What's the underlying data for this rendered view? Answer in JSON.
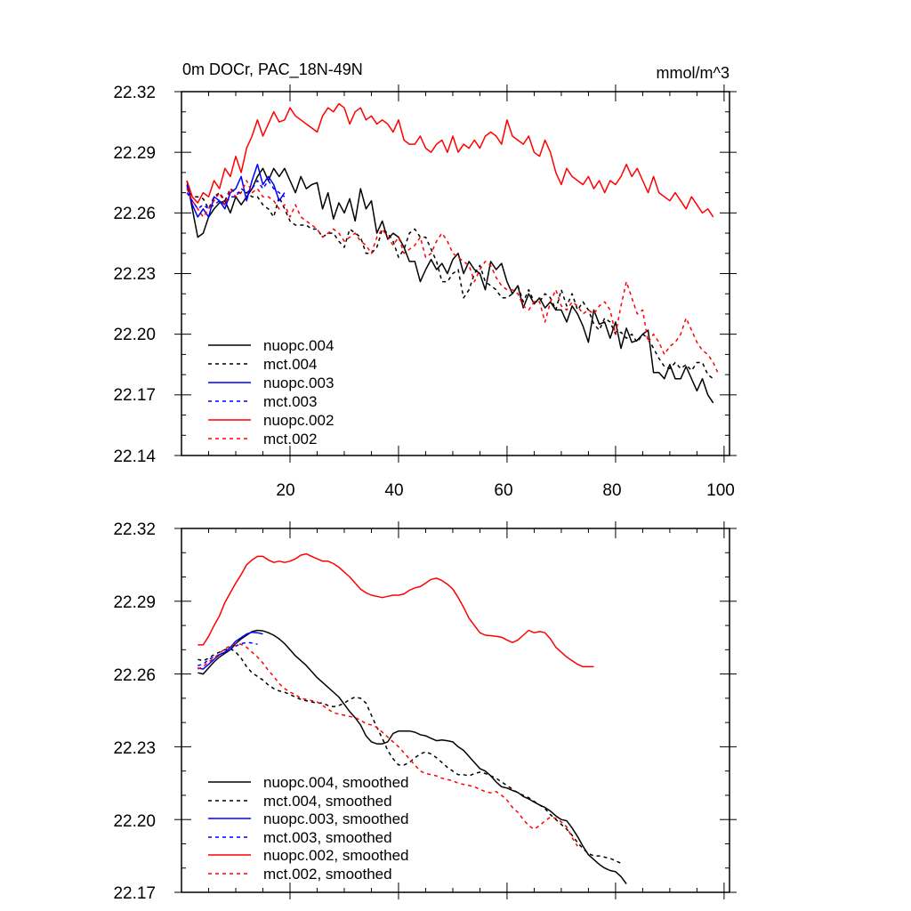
{
  "colors": {
    "black": "#000000",
    "blue": "#0000ff",
    "red": "#ff0000"
  },
  "chart_data": [
    {
      "type": "line",
      "title": "0m DOCr, PAC_18N-49N",
      "units": "mmol/m^3",
      "xlim": [
        0,
        101
      ],
      "ylim": [
        22.14,
        22.32
      ],
      "x_ticks": [
        "20",
        "40",
        "60",
        "80",
        "100"
      ],
      "y_ticks": [
        "22.14",
        "22.17",
        "22.20",
        "22.23",
        "22.26",
        "22.29",
        "22.32"
      ],
      "grid": false,
      "legend_position": "bottom-left",
      "series": [
        {
          "name": "nuopc.004",
          "color": "#000000",
          "dash": "solid",
          "x_start": 1,
          "values": [
            22.276,
            22.262,
            22.248,
            22.25,
            22.258,
            22.262,
            22.265,
            22.266,
            22.26,
            22.268,
            22.264,
            22.268,
            22.272,
            22.278,
            22.282,
            22.276,
            22.282,
            22.278,
            22.282,
            22.276,
            22.27,
            22.278,
            22.272,
            22.274,
            22.275,
            22.262,
            22.27,
            22.257,
            22.265,
            22.26,
            22.267,
            22.256,
            22.272,
            22.262,
            22.266,
            22.25,
            22.256,
            22.247,
            22.25,
            22.248,
            22.243,
            22.236,
            22.236,
            22.226,
            22.232,
            22.237,
            22.232,
            22.235,
            22.23,
            22.237,
            22.24,
            22.23,
            22.236,
            22.232,
            22.23,
            22.222,
            22.236,
            22.232,
            22.235,
            22.226,
            22.22,
            22.224,
            22.213,
            22.22,
            22.215,
            22.218,
            22.213,
            22.216,
            22.212,
            22.212,
            22.206,
            22.214,
            22.21,
            22.204,
            22.196,
            22.212,
            22.205,
            22.206,
            22.198,
            22.206,
            22.193,
            22.203,
            22.196,
            22.197,
            22.2,
            22.202,
            22.181,
            22.181,
            22.178,
            22.185,
            22.178,
            22.178,
            22.184,
            22.178,
            22.172,
            22.178,
            22.17,
            22.166
          ]
        },
        {
          "name": "mct.004",
          "color": "#000000",
          "dash": "dashed",
          "x_start": 1,
          "values": [
            22.273,
            22.268,
            22.268,
            22.267,
            22.262,
            22.268,
            22.27,
            22.266,
            22.272,
            22.27,
            22.27,
            22.27,
            22.268,
            22.268,
            22.264,
            22.262,
            22.258,
            22.268,
            22.262,
            22.256,
            22.254,
            22.254,
            22.254,
            22.252,
            22.252,
            22.248,
            22.25,
            22.25,
            22.246,
            22.243,
            22.252,
            22.25,
            22.248,
            22.24,
            22.24,
            22.243,
            22.252,
            22.25,
            22.246,
            22.238,
            22.242,
            22.25,
            22.252,
            22.248,
            22.248,
            22.242,
            22.236,
            22.226,
            22.226,
            22.23,
            22.232,
            22.218,
            22.222,
            22.23,
            22.234,
            22.226,
            22.224,
            22.222,
            22.218,
            22.218,
            22.22,
            22.224,
            22.216,
            22.222,
            22.216,
            22.216,
            22.22,
            22.218,
            22.212,
            22.222,
            22.214,
            22.22,
            22.212,
            22.216,
            22.212,
            22.205,
            22.202,
            22.208,
            22.206,
            22.2,
            22.201,
            22.198,
            22.2,
            22.196,
            22.2,
            22.198,
            22.193,
            22.188,
            22.184,
            22.183,
            22.186,
            22.183,
            22.185,
            22.182,
            22.186,
            22.186,
            22.18,
            22.178
          ]
        },
        {
          "name": "nuopc.003",
          "color": "#0000ff",
          "dash": "solid",
          "x_start": 1,
          "values": [
            22.274,
            22.264,
            22.258,
            22.262,
            22.258,
            22.268,
            22.266,
            22.262,
            22.27,
            22.272,
            22.278,
            22.266,
            22.276,
            22.284,
            22.274,
            22.278,
            22.274,
            22.266,
            22.27
          ]
        },
        {
          "name": "mct.003",
          "color": "#0000ff",
          "dash": "dashed",
          "x_start": 1,
          "values": [
            22.27,
            22.266,
            22.262,
            22.264,
            22.262,
            22.264,
            22.266,
            22.264,
            22.268,
            22.268,
            22.272,
            22.27,
            22.272,
            22.276,
            22.272,
            22.276,
            22.272,
            22.27,
            22.268
          ]
        },
        {
          "name": "nuopc.002",
          "color": "#ff0000",
          "dash": "solid",
          "x_start": 1,
          "values": [
            22.276,
            22.268,
            22.265,
            22.27,
            22.268,
            22.276,
            22.272,
            22.282,
            22.278,
            22.288,
            22.28,
            22.292,
            22.298,
            22.306,
            22.298,
            22.304,
            22.31,
            22.305,
            22.306,
            22.312,
            22.308,
            22.306,
            22.304,
            22.302,
            22.3,
            22.308,
            22.312,
            22.31,
            22.314,
            22.312,
            22.304,
            22.31,
            22.312,
            22.306,
            22.308,
            22.304,
            22.306,
            22.304,
            22.3,
            22.306,
            22.296,
            22.294,
            22.294,
            22.298,
            22.292,
            22.29,
            22.294,
            22.296,
            22.29,
            22.298,
            22.29,
            22.294,
            22.292,
            22.296,
            22.292,
            22.298,
            22.3,
            22.298,
            22.294,
            22.306,
            22.298,
            22.296,
            22.294,
            22.298,
            22.29,
            22.288,
            22.296,
            22.29,
            22.28,
            22.274,
            22.282,
            22.278,
            22.276,
            22.274,
            22.278,
            22.272,
            22.276,
            22.27,
            22.276,
            22.274,
            22.278,
            22.284,
            22.278,
            22.282,
            22.276,
            22.27,
            22.278,
            22.27,
            22.268,
            22.266,
            22.27,
            22.266,
            22.262,
            22.268,
            22.264,
            22.26,
            22.262,
            22.258
          ]
        },
        {
          "name": "mct.002",
          "color": "#ff0000",
          "dash": "dashed",
          "x_start": 1,
          "values": [
            22.272,
            22.266,
            22.262,
            22.258,
            22.262,
            22.266,
            22.27,
            22.264,
            22.272,
            22.268,
            22.27,
            22.276,
            22.27,
            22.272,
            22.268,
            22.268,
            22.266,
            22.262,
            22.264,
            22.258,
            22.264,
            22.258,
            22.256,
            22.254,
            22.252,
            22.248,
            22.25,
            22.252,
            22.25,
            22.246,
            22.248,
            22.25,
            22.246,
            22.244,
            22.24,
            22.248,
            22.252,
            22.248,
            22.244,
            22.248,
            22.24,
            22.242,
            22.244,
            22.248,
            22.238,
            22.24,
            22.246,
            22.25,
            22.246,
            22.24,
            22.238,
            22.236,
            22.234,
            22.226,
            22.232,
            22.236,
            22.234,
            22.228,
            22.224,
            22.222,
            22.222,
            22.22,
            22.214,
            22.212,
            22.216,
            22.216,
            22.206,
            22.216,
            22.222,
            22.214,
            22.212,
            22.216,
            22.214,
            22.21,
            22.212,
            22.21,
            22.214,
            22.216,
            22.212,
            22.2,
            22.214,
            22.226,
            22.218,
            22.21,
            22.212,
            22.196,
            22.2,
            22.196,
            22.19,
            22.194,
            22.196,
            22.2,
            22.208,
            22.202,
            22.196,
            22.192,
            22.19,
            22.186,
            22.18
          ]
        }
      ]
    },
    {
      "type": "line",
      "xlim": [
        0,
        101
      ],
      "ylim": [
        22.17,
        22.32
      ],
      "y_ticks": [
        "22.17",
        "22.20",
        "22.23",
        "22.26",
        "22.29",
        "22.32"
      ],
      "grid": false,
      "legend_position": "bottom-left",
      "series": [
        {
          "name": "nuopc.004, smoothed",
          "color": "#000000",
          "dash": "solid",
          "x_start": 3,
          "values": [
            22.2605,
            22.26,
            22.2625,
            22.265,
            22.267,
            22.2685,
            22.27,
            22.2725,
            22.2745,
            22.276,
            22.2775,
            22.278,
            22.2778,
            22.277,
            22.276,
            22.2745,
            22.2725,
            22.27,
            22.2675,
            22.2655,
            22.2635,
            22.261,
            22.2585,
            22.2565,
            22.2545,
            22.2525,
            22.2505,
            22.2475,
            22.2445,
            22.242,
            22.239,
            22.2345,
            22.232,
            22.2312,
            22.2312,
            22.232,
            22.2355,
            22.2365,
            22.2365,
            22.2365,
            22.236,
            22.235,
            22.2345,
            22.2335,
            22.2325,
            22.2328,
            22.2325,
            22.232,
            22.23,
            22.2285,
            22.226,
            22.2235,
            22.221,
            22.22,
            22.218,
            22.2155,
            22.2135,
            22.213,
            22.212,
            22.2112,
            22.2095,
            22.2085,
            22.2072,
            22.206,
            22.205,
            22.2035,
            22.2015,
            22.2,
            22.1995,
            22.1965,
            22.193,
            22.189,
            22.1855,
            22.1835,
            22.1815,
            22.18,
            22.179,
            22.1785,
            22.1765,
            22.1735
          ]
        },
        {
          "name": "mct.004, smoothed",
          "color": "#000000",
          "dash": "dashed",
          "x_start": 3,
          "values": [
            22.266,
            22.2655,
            22.2665,
            22.268,
            22.269,
            22.27,
            22.2705,
            22.269,
            22.2665,
            22.263,
            22.2605,
            22.259,
            22.2575,
            22.2555,
            22.254,
            22.253,
            22.2525,
            22.2515,
            22.2505,
            22.2495,
            22.249,
            22.2485,
            22.248,
            22.248,
            22.247,
            22.2465,
            22.247,
            22.248,
            22.2495,
            22.2505,
            22.25,
            22.248,
            22.243,
            22.238,
            22.2335,
            22.2285,
            22.225,
            22.2225,
            22.2225,
            22.2235,
            22.2255,
            22.227,
            22.228,
            22.227,
            22.2255,
            22.2235,
            22.2215,
            22.22,
            22.2185,
            22.2185,
            22.218,
            22.219,
            22.2195,
            22.219,
            22.218,
            22.217,
            22.2155,
            22.214,
            22.2125,
            22.211,
            22.21,
            22.209,
            22.2075,
            22.206,
            22.2045,
            22.202,
            22.2,
            22.198,
            22.196,
            22.1935,
            22.1905,
            22.188,
            22.186,
            22.185,
            22.185,
            22.1845,
            22.184,
            22.183,
            22.182
          ]
        },
        {
          "name": "nuopc.003, smoothed",
          "color": "#0000ff",
          "dash": "solid",
          "x_start": 3,
          "values": [
            22.2625,
            22.262,
            22.264,
            22.266,
            22.268,
            22.269,
            22.271,
            22.2735,
            22.275,
            22.2765,
            22.2772,
            22.277,
            22.2765
          ]
        },
        {
          "name": "mct.003, smoothed",
          "color": "#0000ff",
          "dash": "dashed",
          "x_start": 3,
          "values": [
            22.2635,
            22.264,
            22.266,
            22.267,
            22.268,
            22.269,
            22.27,
            22.2715,
            22.2725,
            22.273,
            22.2728,
            22.2722
          ]
        },
        {
          "name": "nuopc.002, smoothed",
          "color": "#ff0000",
          "dash": "solid",
          "x_start": 3,
          "values": [
            22.272,
            22.272,
            22.2755,
            22.28,
            22.284,
            22.2895,
            22.2935,
            22.2975,
            22.301,
            22.305,
            22.307,
            22.3085,
            22.3085,
            22.307,
            22.306,
            22.3065,
            22.306,
            22.3065,
            22.3075,
            22.309,
            22.3095,
            22.3085,
            22.3075,
            22.3065,
            22.3065,
            22.3055,
            22.304,
            22.302,
            22.3,
            22.2975,
            22.295,
            22.2935,
            22.2925,
            22.292,
            22.2915,
            22.292,
            22.2925,
            22.2925,
            22.293,
            22.2945,
            22.2955,
            22.296,
            22.2975,
            22.299,
            22.2995,
            22.2985,
            22.297,
            22.295,
            22.2915,
            22.2875,
            22.283,
            22.28,
            22.277,
            22.276,
            22.2758,
            22.2755,
            22.2752,
            22.274,
            22.273,
            22.274,
            22.276,
            22.278,
            22.277,
            22.2775,
            22.277,
            22.2745,
            22.271,
            22.269,
            22.267,
            22.2655,
            22.264,
            22.263,
            22.263,
            22.263
          ]
        },
        {
          "name": "mct.002, smoothed",
          "color": "#ff0000",
          "dash": "dashed",
          "x_start": 3,
          "values": [
            22.262,
            22.263,
            22.265,
            22.2665,
            22.2685,
            22.2705,
            22.2715,
            22.2725,
            22.2722,
            22.271,
            22.269,
            22.267,
            22.2645,
            22.2615,
            22.259,
            22.256,
            22.254,
            22.2525,
            22.2515,
            22.25,
            22.2495,
            22.249,
            22.2485,
            22.247,
            22.2455,
            22.244,
            22.2435,
            22.243,
            22.2425,
            22.242,
            22.241,
            22.2395,
            22.239,
            22.238,
            22.236,
            22.234,
            22.232,
            22.23,
            22.2275,
            22.225,
            22.2225,
            22.22,
            22.219,
            22.2185,
            22.218,
            22.217,
            22.2165,
            22.216,
            22.215,
            22.2145,
            22.214,
            22.2135,
            22.2125,
            22.2115,
            22.211,
            22.2115,
            22.21,
            22.208,
            22.205,
            22.203,
            22.2,
            22.1975,
            22.196,
            22.1975,
            22.1995,
            22.201,
            22.2005,
            22.199,
            22.197,
            22.1925,
            22.189
          ]
        }
      ]
    }
  ]
}
